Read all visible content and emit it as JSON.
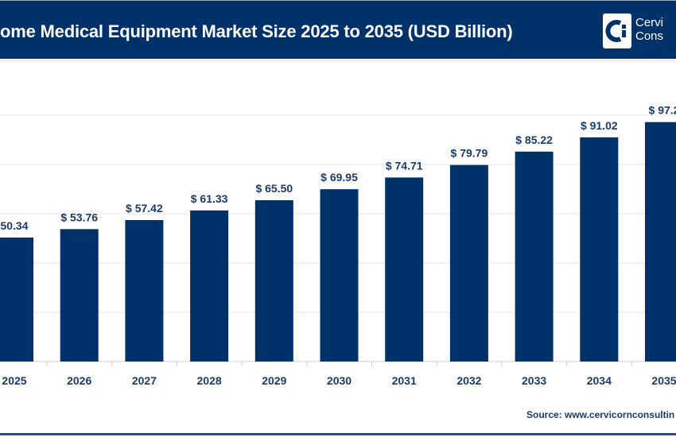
{
  "header": {
    "title": "ome Medical Equipment Market Size 2025 to 2035 (USD Billion)",
    "logo_line1": "Cervi",
    "logo_line2": "Cons"
  },
  "source": "Source: www.cervicornconsultin",
  "colors": {
    "bar": "#003169",
    "header": "#003169",
    "label": "#1d3a6e"
  },
  "chart_data": {
    "type": "bar",
    "title": "ome Medical Equipment Market Size 2025 to 2035 (USD Billion)",
    "categories": [
      "2025",
      "2026",
      "2027",
      "2028",
      "2029",
      "2030",
      "2031",
      "2032",
      "2033",
      "2034",
      "2035"
    ],
    "values": [
      50.34,
      53.76,
      57.42,
      61.33,
      65.5,
      69.95,
      74.71,
      79.79,
      85.22,
      91.02,
      97.2
    ],
    "data_labels": [
      "50.34",
      "$ 53.76",
      "$ 57.42",
      "$ 61.33",
      "$ 65.50",
      "$ 69.95",
      "$ 74.71",
      "$ 79.79",
      "$ 85.22",
      "$ 91.02",
      "$ 97.2"
    ],
    "ylim": [
      0,
      100
    ],
    "grid": true,
    "xlabel": "",
    "ylabel": ""
  }
}
